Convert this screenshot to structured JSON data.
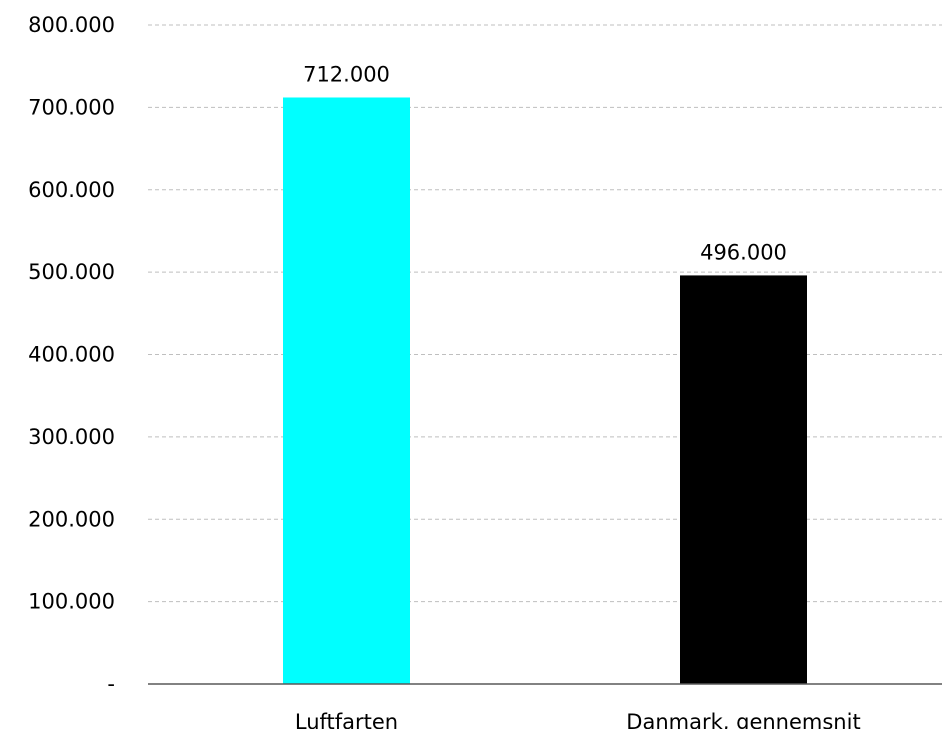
{
  "chart_data": {
    "type": "bar",
    "categories": [
      "Luftfarten",
      "Danmark, gennemsnit"
    ],
    "values": [
      712000,
      496000
    ],
    "value_labels": [
      "712.000",
      "496.000"
    ],
    "bar_colors": [
      "#00ffff",
      "#000000"
    ],
    "ylim": [
      0,
      800000
    ],
    "y_ticks": [
      0,
      100000,
      200000,
      300000,
      400000,
      500000,
      600000,
      700000,
      800000
    ],
    "y_tick_labels": [
      "-",
      "100.000",
      "200.000",
      "300.000",
      "400.000",
      "500.000",
      "600.000",
      "700.000",
      "800.000"
    ],
    "grid": true,
    "legend": "none"
  }
}
